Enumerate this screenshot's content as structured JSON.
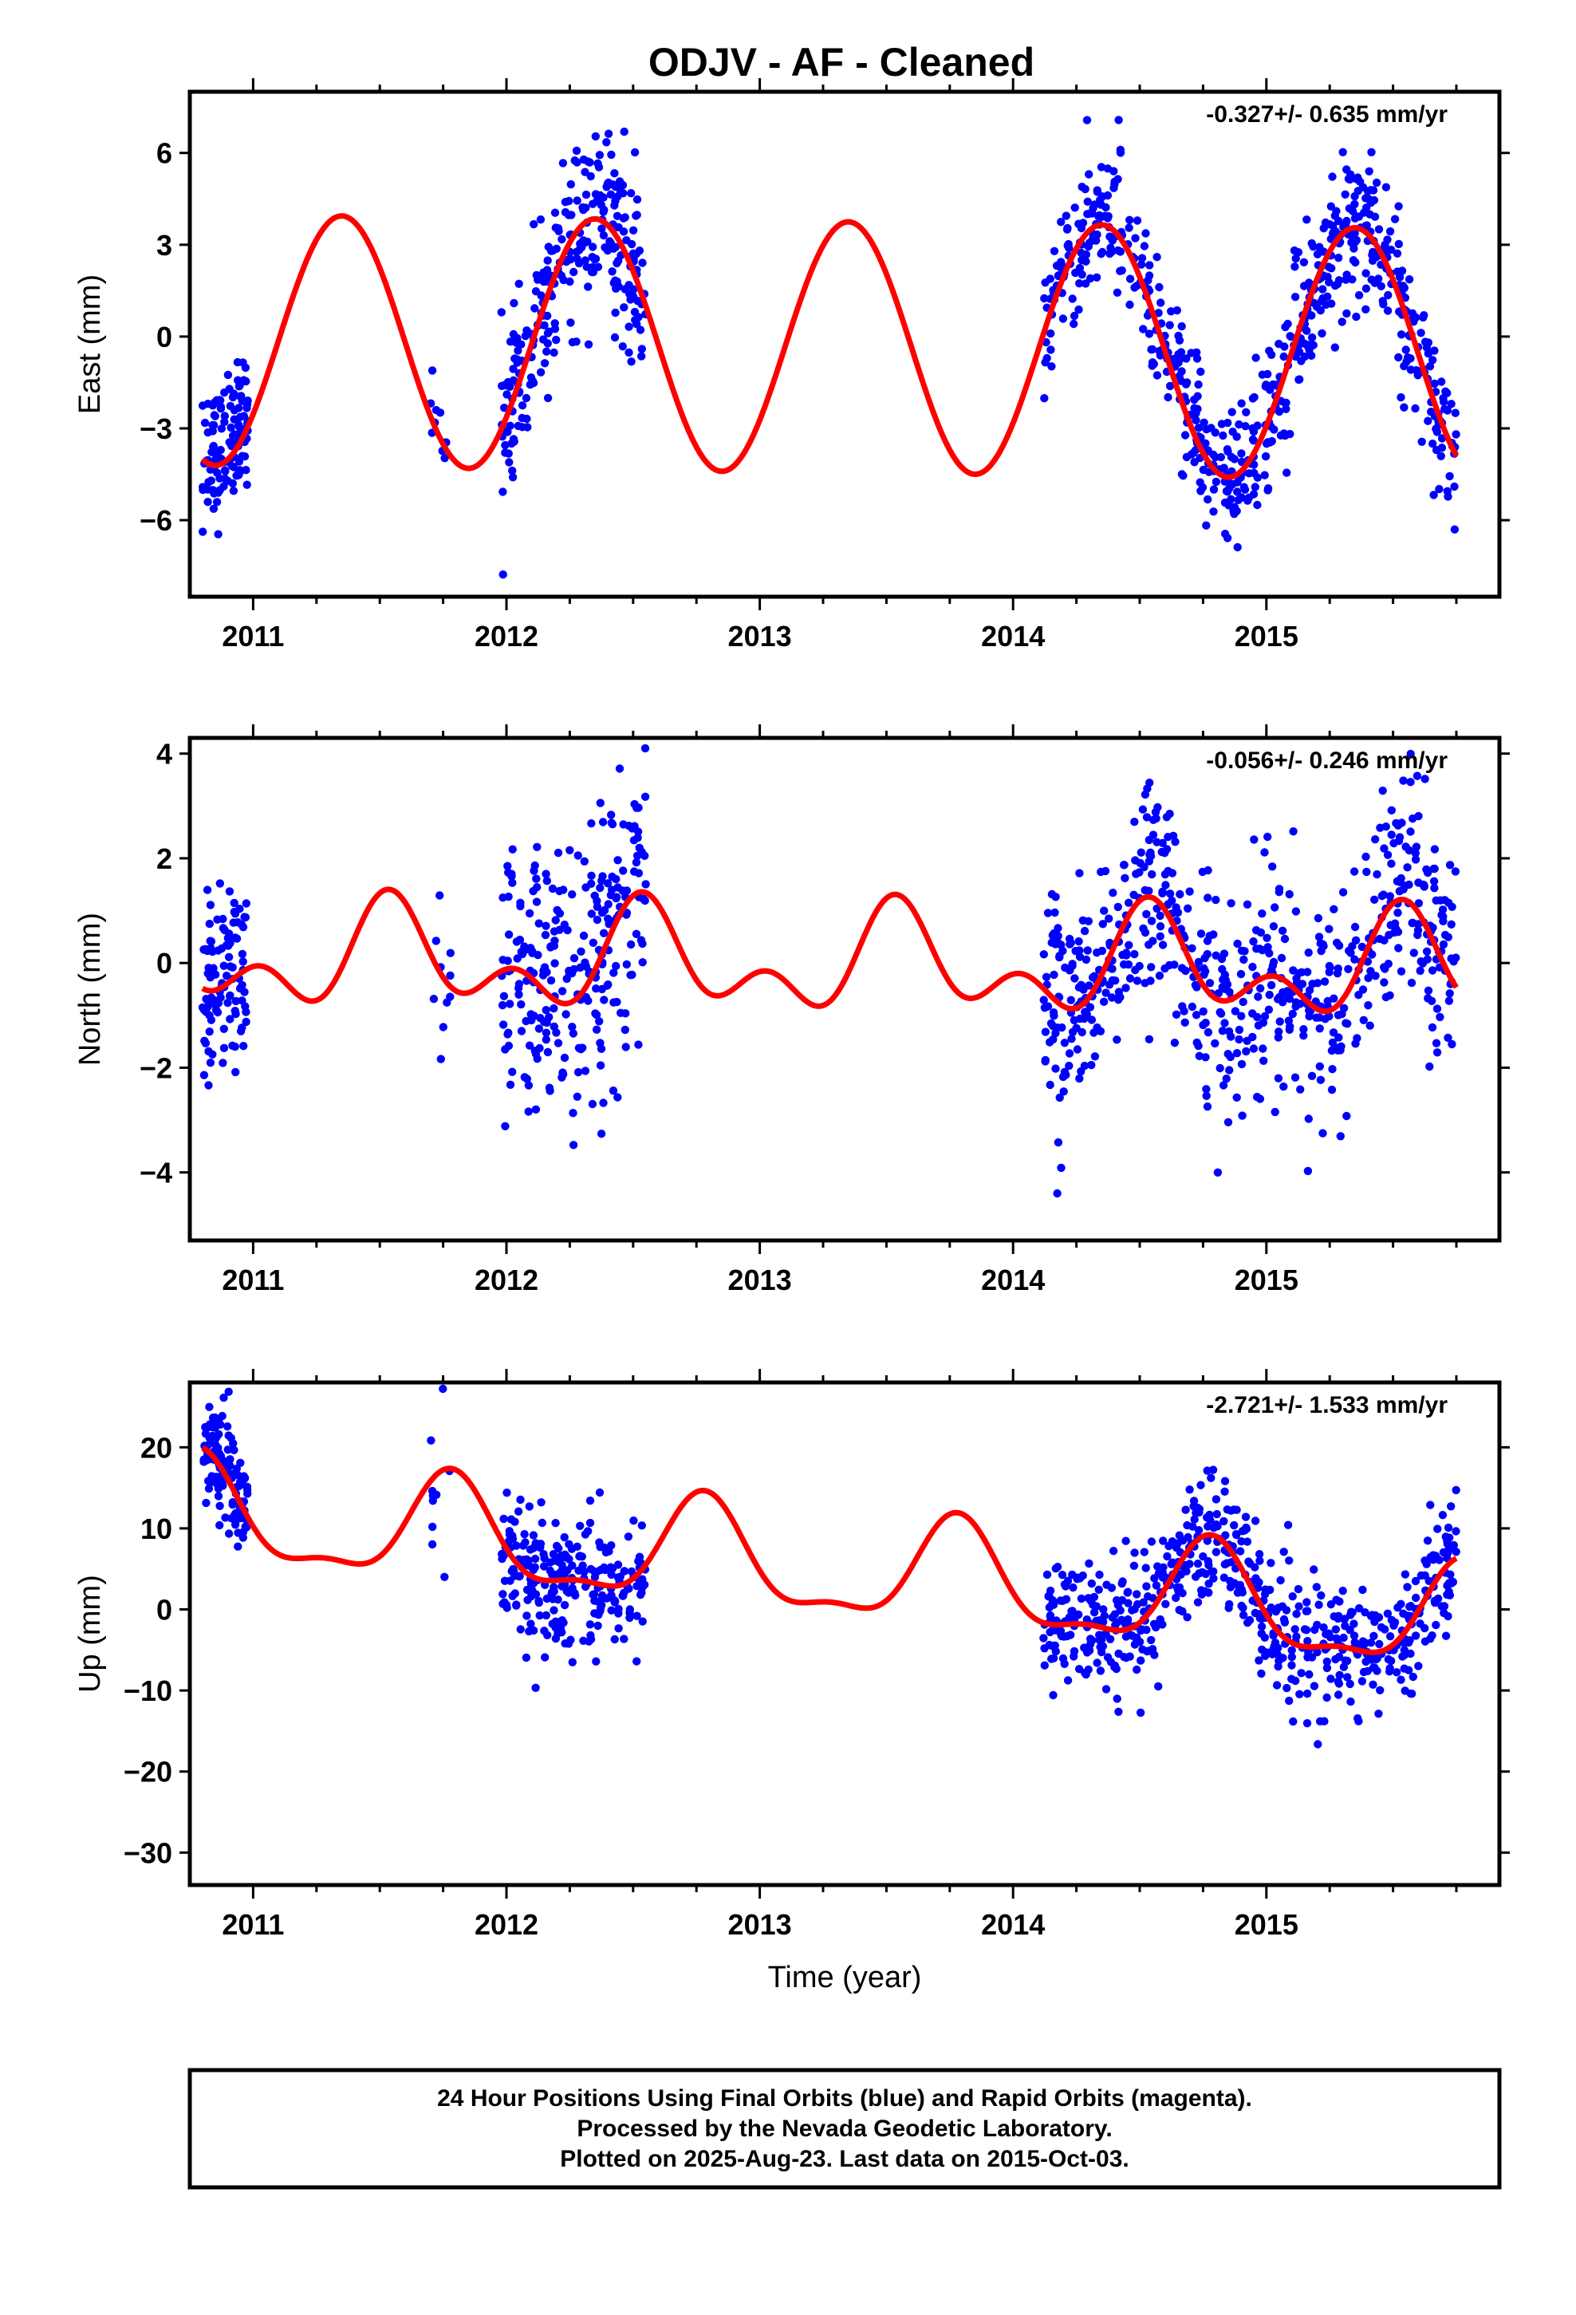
{
  "colors": {
    "final_orbits": "#0000ff",
    "model": "#ff0000",
    "frame": "#000000"
  },
  "chart_data": [
    {
      "type": "scatter",
      "title": "ODJV  - AF - Cleaned",
      "ylabel": "East (mm)",
      "xlabel": "",
      "rate_label": "-0.327+/- 0.635 mm/yr",
      "xlim": [
        2010.75,
        2015.92
      ],
      "ylim": [
        -8.5,
        8.0
      ],
      "x_ticks": [
        2011,
        2012,
        2013,
        2014,
        2015
      ],
      "y_ticks": [
        -6,
        -3,
        0,
        3,
        6
      ],
      "grid": false,
      "series": [
        {
          "role": "final-orbits",
          "segments": [
            {
              "x0": 2010.8,
              "x1": 2010.98,
              "trend": [
                -4.6,
                -2.3
              ],
              "seasonal_amp": 0,
              "phase": 0,
              "noise": 1.1,
              "n": 120
            },
            {
              "x0": 2011.7,
              "x1": 2011.78,
              "trend": [
                -3.0,
                -3.0
              ],
              "seasonal_amp": 0,
              "phase": 0,
              "noise": 1.3,
              "n": 10
            },
            {
              "x0": 2011.98,
              "x1": 2012.55,
              "model": true,
              "noise": 1.4,
              "n": 270
            },
            {
              "x0": 2014.12,
              "x1": 2015.75,
              "model": true,
              "noise": 1.2,
              "n": 640
            }
          ]
        },
        {
          "role": "model",
          "baseline": [
            -0.1,
            -0.6
          ],
          "harmonics": [
            {
              "amp": 4.1,
              "period": 1.0,
              "peak": 2011.35
            }
          ]
        }
      ]
    },
    {
      "type": "scatter",
      "title": "",
      "ylabel": "North (mm)",
      "xlabel": "",
      "rate_label": "-0.056+/- 0.246 mm/yr",
      "xlim": [
        2010.75,
        2015.92
      ],
      "ylim": [
        -5.3,
        4.3
      ],
      "x_ticks": [
        2011,
        2012,
        2013,
        2014,
        2015
      ],
      "y_ticks": [
        -4,
        -2,
        0,
        2,
        4
      ],
      "grid": false,
      "series": [
        {
          "role": "final-orbits",
          "segments": [
            {
              "x0": 2010.8,
              "x1": 2010.98,
              "model": true,
              "noise": 0.9,
              "n": 110
            },
            {
              "x0": 2011.7,
              "x1": 2011.78,
              "model": true,
              "noise": 0.9,
              "n": 10
            },
            {
              "x0": 2011.98,
              "x1": 2012.55,
              "model": true,
              "noise": 1.3,
              "n": 260
            },
            {
              "x0": 2014.12,
              "x1": 2015.75,
              "model": true,
              "noise": 1.1,
              "n": 640
            }
          ]
        },
        {
          "role": "model",
          "baseline": [
            0.1,
            -0.15
          ],
          "harmonics": [
            {
              "amp": 0.75,
              "period": 1.0,
              "peak": 2011.55
            },
            {
              "amp": 0.6,
              "period": 0.5,
              "peak": 2011.03
            }
          ]
        }
      ]
    },
    {
      "type": "scatter",
      "title": "",
      "ylabel": "Up (mm)",
      "xlabel": "Time (year)",
      "rate_label": "-2.721+/- 1.533 mm/yr",
      "xlim": [
        2010.75,
        2015.92
      ],
      "ylim": [
        -34,
        28
      ],
      "x_ticks": [
        2011,
        2012,
        2013,
        2014,
        2015
      ],
      "y_ticks": [
        -30,
        -20,
        -10,
        0,
        10,
        20
      ],
      "grid": false,
      "series": [
        {
          "role": "final-orbits",
          "segments": [
            {
              "x0": 2010.8,
              "x1": 2010.98,
              "model": true,
              "noise": 3.5,
              "n": 120
            },
            {
              "x0": 2011.7,
              "x1": 2011.78,
              "model": true,
              "noise": 4.0,
              "n": 10
            },
            {
              "x0": 2011.98,
              "x1": 2012.55,
              "model": true,
              "noise": 4.0,
              "n": 260
            },
            {
              "x0": 2014.12,
              "x1": 2015.75,
              "model": true,
              "noise": 4.0,
              "n": 640
            }
          ]
        },
        {
          "role": "model",
          "baseline": [
            11.8,
            -2.3
          ],
          "harmonics": [
            {
              "amp": 6.2,
              "period": 1.0,
              "peak": 2011.78
            },
            {
              "amp": 2.2,
              "period": 0.5,
              "peak": 2011.78
            }
          ]
        }
      ]
    }
  ],
  "footer": {
    "line1": "24 Hour Positions Using Final Orbits (blue) and Rapid Orbits (magenta).",
    "line2": "Processed by the Nevada Geodetic Laboratory.",
    "line3": "Plotted on 2025-Aug-23. Last data on 2015-Oct-03."
  }
}
